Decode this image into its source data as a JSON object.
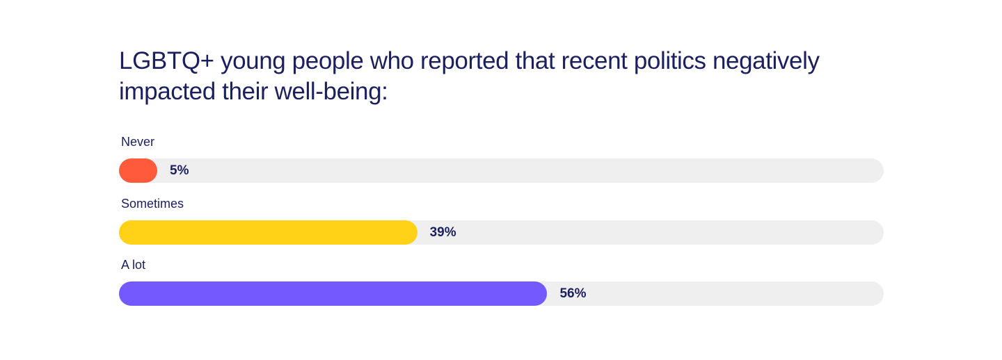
{
  "chart_data": {
    "type": "bar",
    "orientation": "horizontal",
    "title": "LGBTQ+ young people who reported that recent politics negatively impacted their well-being:",
    "categories": [
      "Never",
      "Sometimes",
      "A lot"
    ],
    "values": [
      5,
      39,
      56
    ],
    "value_labels": [
      "5%",
      "39%",
      "56%"
    ],
    "colors": [
      "#ff5a3c",
      "#ffd218",
      "#7459ff"
    ],
    "track_color": "#efefef",
    "xlim": [
      0,
      100
    ],
    "grid": false
  }
}
